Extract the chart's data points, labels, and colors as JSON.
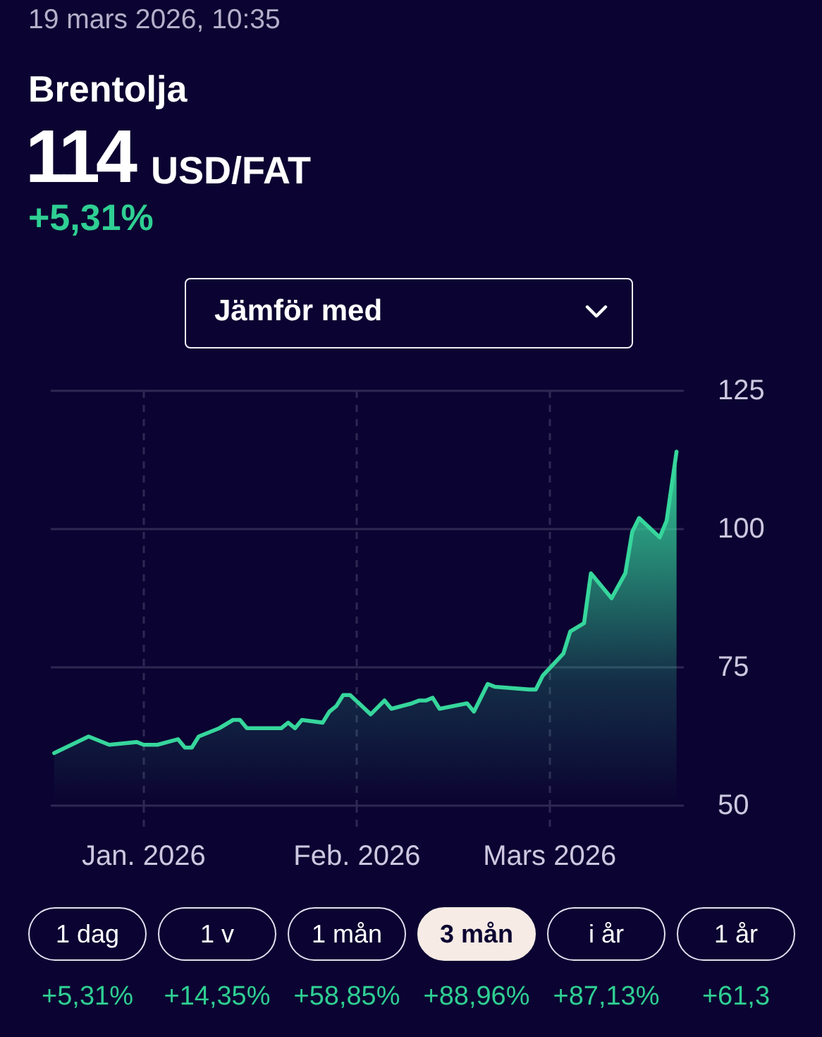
{
  "chart_data": {
    "type": "area",
    "title": "Brentolja",
    "annotations": [
      "19 mars 2026, 10:35",
      "114",
      "USD/FAT",
      "+5,31%",
      "Jämför med",
      "1 dag",
      "1 v",
      "1 mån",
      "3 mån",
      "i år",
      "1 år",
      "+5,31%",
      "+14,35%",
      "+58,85%",
      "+88,96%",
      "+87,13%",
      "+61,3"
    ],
    "x": [
      "2025-12-19",
      "2025-12-24",
      "2025-12-27",
      "2025-12-31",
      "2026-01-01",
      "2026-01-03",
      "2026-01-06",
      "2026-01-07",
      "2026-01-08",
      "2026-01-09",
      "2026-01-12",
      "2026-01-14",
      "2026-01-15",
      "2026-01-16",
      "2026-01-21",
      "2026-01-22",
      "2026-01-23",
      "2026-01-24",
      "2026-01-27",
      "2026-01-28",
      "2026-01-29",
      "2026-01-30",
      "2026-01-31",
      "2026-02-03",
      "2026-02-05",
      "2026-02-06",
      "2026-02-09",
      "2026-02-10",
      "2026-02-11",
      "2026-02-12",
      "2026-02-13",
      "2026-02-17",
      "2026-02-18",
      "2026-02-20",
      "2026-02-21",
      "2026-02-26",
      "2026-02-27",
      "2026-02-28",
      "2026-03-03",
      "2026-03-04",
      "2026-03-06",
      "2026-03-07",
      "2026-03-10",
      "2026-03-12",
      "2026-03-13",
      "2026-03-14",
      "2026-03-17",
      "2026-03-18",
      "2026-03-19T10:35"
    ],
    "values": [
      59.5,
      62.5,
      61,
      61.5,
      61,
      61,
      62,
      60.5,
      60.5,
      62.5,
      64,
      65.5,
      65.5,
      64,
      64,
      65,
      64,
      65.5,
      65,
      67,
      68,
      70,
      70,
      66.5,
      69,
      67.5,
      68.5,
      69,
      69,
      69.5,
      67.5,
      68.5,
      67,
      72,
      71.5,
      71,
      71,
      73.5,
      77.5,
      81.5,
      83,
      92,
      87.5,
      92,
      99.5,
      102,
      98.5,
      101.5,
      114
    ],
    "color": "#36d69c",
    "marker": "none",
    "xlim": [
      "2025-12-18T12:00",
      "2026-03-20T12:00"
    ],
    "xticks": [
      {
        "value": "2026-01-01",
        "label": "Jan. 2026"
      },
      {
        "value": "2026-02-01",
        "label": "Feb. 2026"
      },
      {
        "value": "2026-03-01",
        "label": "Mars 2026"
      }
    ],
    "ylim": [
      50,
      125
    ],
    "yticks": [
      50,
      75,
      100,
      125
    ],
    "grid": true
  }
}
